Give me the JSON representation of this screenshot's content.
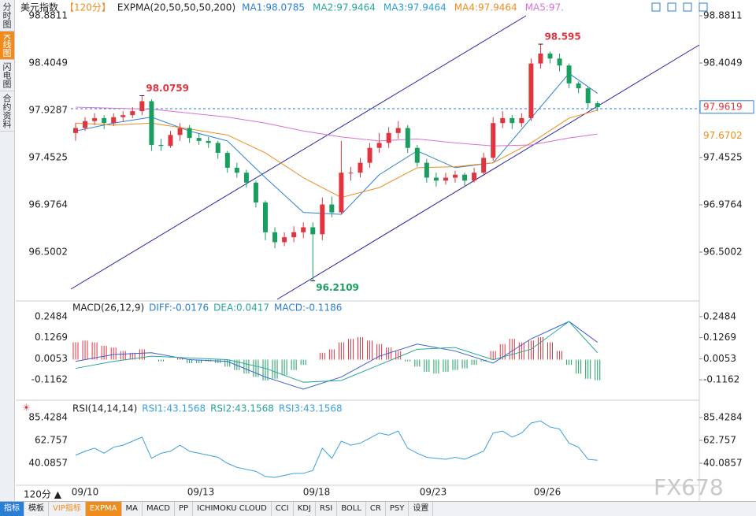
{
  "sidebar": {
    "tabs": [
      "分时图",
      "K线图",
      "闪电图",
      "合约资料"
    ]
  },
  "price_panel": {
    "symbol": "美元指数",
    "period": "【120分】",
    "indicator": "EXPMA(20,50,50,50,200)",
    "ma_labels": [
      {
        "text": "MA1:98.0785",
        "color": "#2a7fd4"
      },
      {
        "text": "MA2:97.9464",
        "color": "#26a69a"
      },
      {
        "text": "MA3:97.9464",
        "color": "#2a9fd4"
      },
      {
        "text": "MA4:97.9464",
        "color": "#f08c1e"
      },
      {
        "text": "MA5:97.",
        "color": "#d870d8"
      }
    ],
    "ylim": [
      96.024,
      98.897
    ],
    "yticks": [
      98.8811,
      98.4049,
      97.9287,
      97.4525,
      96.9764,
      96.5002
    ],
    "up_color": "#e0353f",
    "down_color": "#1a9e60",
    "candles": [
      [
        97.7,
        97.8,
        97.62,
        97.75
      ],
      [
        97.75,
        97.86,
        97.72,
        97.82
      ],
      [
        97.82,
        97.9,
        97.78,
        97.85
      ],
      [
        97.85,
        97.88,
        97.74,
        97.8
      ],
      [
        97.8,
        97.9,
        97.77,
        97.86
      ],
      [
        97.86,
        97.92,
        97.82,
        97.88
      ],
      [
        97.88,
        97.96,
        97.85,
        97.92
      ],
      [
        97.92,
        98.0759,
        97.88,
        98.02
      ],
      [
        98.02,
        98.04,
        97.52,
        97.58
      ],
      [
        97.58,
        97.64,
        97.52,
        97.57
      ],
      [
        97.57,
        97.72,
        97.55,
        97.68
      ],
      [
        97.68,
        97.8,
        97.62,
        97.75
      ],
      [
        97.75,
        97.78,
        97.6,
        97.65
      ],
      [
        97.65,
        97.7,
        97.58,
        97.62
      ],
      [
        97.62,
        97.66,
        97.55,
        97.6
      ],
      [
        97.6,
        97.62,
        97.44,
        97.5
      ],
      [
        97.5,
        97.52,
        97.3,
        97.35
      ],
      [
        97.35,
        97.4,
        97.25,
        97.3
      ],
      [
        97.3,
        97.33,
        97.15,
        97.2
      ],
      [
        97.2,
        97.22,
        96.95,
        97.0
      ],
      [
        97.0,
        97.02,
        96.62,
        96.7
      ],
      [
        96.7,
        96.75,
        96.54,
        96.6
      ],
      [
        96.6,
        96.7,
        96.56,
        96.65
      ],
      [
        96.65,
        96.76,
        96.6,
        96.7
      ],
      [
        96.7,
        96.8,
        96.64,
        96.75
      ],
      [
        96.75,
        96.8,
        96.2109,
        96.68
      ],
      [
        96.68,
        97.05,
        96.62,
        96.98
      ],
      [
        96.98,
        97.06,
        96.85,
        96.9
      ],
      [
        96.9,
        97.62,
        96.88,
        97.3
      ],
      [
        97.3,
        97.36,
        97.22,
        97.3
      ],
      [
        97.3,
        97.45,
        97.25,
        97.4
      ],
      [
        97.4,
        97.6,
        97.35,
        97.55
      ],
      [
        97.55,
        97.7,
        97.5,
        97.6
      ],
      [
        97.6,
        97.76,
        97.55,
        97.7
      ],
      [
        97.7,
        97.82,
        97.64,
        97.75
      ],
      [
        97.75,
        97.78,
        97.5,
        97.55
      ],
      [
        97.55,
        97.58,
        97.36,
        97.4
      ],
      [
        97.4,
        97.44,
        97.2,
        97.25
      ],
      [
        97.25,
        97.3,
        97.16,
        97.22
      ],
      [
        97.22,
        97.3,
        97.18,
        97.25
      ],
      [
        97.25,
        97.32,
        97.2,
        97.28
      ],
      [
        97.28,
        97.3,
        97.16,
        97.22
      ],
      [
        97.22,
        97.35,
        97.2,
        97.3
      ],
      [
        97.3,
        97.5,
        97.28,
        97.45
      ],
      [
        97.45,
        97.86,
        97.42,
        97.8
      ],
      [
        97.8,
        97.92,
        97.75,
        97.85
      ],
      [
        97.85,
        97.88,
        97.74,
        97.8
      ],
      [
        97.8,
        97.9,
        97.76,
        97.85
      ],
      [
        97.85,
        98.45,
        97.82,
        98.4
      ],
      [
        98.4,
        98.595,
        98.35,
        98.5
      ],
      [
        98.5,
        98.52,
        98.4,
        98.45
      ],
      [
        98.45,
        98.5,
        98.32,
        98.38
      ],
      [
        98.38,
        98.4,
        98.15,
        98.2
      ],
      [
        98.2,
        98.22,
        98.1,
        98.15
      ],
      [
        98.15,
        98.17,
        97.95,
        98.0
      ],
      [
        98.0,
        98.02,
        97.92,
        97.96
      ]
    ],
    "ma_x": [
      0,
      4,
      8,
      12,
      16,
      20,
      24,
      28,
      32,
      36,
      40,
      44,
      48,
      52,
      55
    ],
    "ma_lines": [
      {
        "color": "#2a7fd4",
        "values": [
          97.72,
          97.8,
          97.86,
          97.72,
          97.62,
          97.25,
          96.9,
          96.88,
          97.28,
          97.52,
          97.35,
          97.4,
          97.85,
          98.3,
          98.1
        ]
      },
      {
        "color": "#f08c1e",
        "values": [
          97.8,
          97.78,
          97.8,
          97.74,
          97.68,
          97.5,
          97.25,
          97.05,
          97.15,
          97.35,
          97.36,
          97.4,
          97.6,
          97.85,
          97.93
        ]
      },
      {
        "color": "#d870d8",
        "values": [
          97.96,
          97.95,
          97.94,
          97.9,
          97.86,
          97.8,
          97.72,
          97.66,
          97.62,
          97.64,
          97.6,
          97.57,
          97.58,
          97.65,
          97.69
        ]
      }
    ],
    "high_labels": [
      98.0759,
      98.595
    ],
    "low_label": 96.2109,
    "last_price": 97.9619,
    "ma_price": 97.6702
  },
  "macd_panel": {
    "title": "MACD(26,12,9)",
    "diff": "DIFF:-0.0176",
    "dea": "DEA:0.0417",
    "macd": "MACD:-0.1186",
    "ylim": [
      -0.22,
      0.325
    ],
    "yticks": [
      0.2484,
      0.1269,
      0.0053,
      -0.1162
    ],
    "histogram": [
      0.1,
      0.11,
      0.1,
      0.08,
      0.07,
      0.05,
      0.04,
      0.06,
      0.0,
      -0.01,
      0.0,
      0.01,
      -0.02,
      -0.02,
      -0.01,
      -0.02,
      -0.04,
      -0.06,
      -0.08,
      -0.1,
      -0.12,
      -0.11,
      -0.09,
      -0.06,
      -0.03,
      0.0,
      0.04,
      0.06,
      0.1,
      0.12,
      0.13,
      0.11,
      0.09,
      0.07,
      0.05,
      -0.01,
      -0.04,
      -0.07,
      -0.08,
      -0.07,
      -0.06,
      -0.05,
      -0.03,
      -0.01,
      0.05,
      0.09,
      0.12,
      0.1,
      0.11,
      0.13,
      0.1,
      0.05,
      -0.03,
      -0.08,
      -0.11,
      -0.1186
    ],
    "lines": [
      {
        "color": "#3a5fd5",
        "values": [
          -0.01,
          0.03,
          0.04,
          0.0,
          -0.01,
          -0.1,
          -0.17,
          -0.1,
          0.02,
          0.09,
          0.05,
          -0.02,
          0.12,
          0.22,
          0.1
        ]
      },
      {
        "color": "#26a69a",
        "values": [
          -0.05,
          -0.01,
          0.02,
          0.01,
          0.0,
          -0.05,
          -0.13,
          -0.12,
          -0.03,
          0.06,
          0.07,
          0.0,
          0.06,
          0.22,
          0.04
        ]
      }
    ]
  },
  "rsi_panel": {
    "title": "RSI(14,14,14)",
    "rsi1": "RSI1:43.1568",
    "rsi2": "RSI2:43.1568",
    "rsi3": "RSI3:43.1568",
    "ylim": [
      19,
      99.5
    ],
    "yticks": [
      85.4284,
      62.757,
      40.0857
    ],
    "color": "#3aa0e0",
    "values": [
      48,
      52,
      55,
      50,
      56,
      58,
      62,
      66,
      45,
      50,
      52,
      58,
      52,
      50,
      48,
      46,
      40,
      36,
      34,
      32,
      27,
      26,
      28,
      30,
      30,
      33,
      55,
      45,
      62,
      58,
      60,
      65,
      70,
      68,
      72,
      55,
      50,
      46,
      45,
      44,
      46,
      44,
      48,
      52,
      70,
      72,
      66,
      70,
      80,
      82,
      76,
      74,
      60,
      56,
      44,
      43
    ]
  },
  "dates": [
    "09/10",
    "09/13",
    "09/18",
    "09/23",
    "09/26"
  ],
  "period_select": "120分 ▲",
  "watermark": "FX678",
  "toolbar": [
    "指标",
    "模板",
    "VIP指标",
    "EXPMA",
    "MA",
    "MACD",
    "PP",
    "ICHIMOKU CLOUD",
    "CCI",
    "KDJ",
    "RSI",
    "BOLL",
    "CR",
    "PSY",
    "设置"
  ]
}
